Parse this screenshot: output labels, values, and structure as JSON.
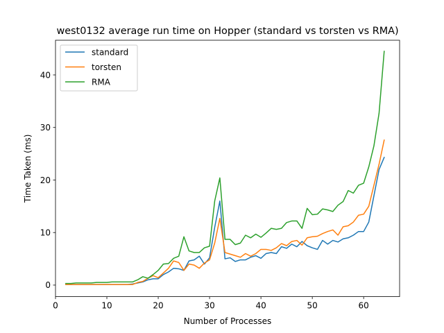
{
  "chart_data": {
    "type": "line",
    "title": "west0132 average run time on Hopper (standard vs torsten vs RMA)",
    "xlabel": "Number of Processes",
    "ylabel": "Time Taken (ms)",
    "xlim": [
      0,
      67
    ],
    "ylim": [
      -2.2,
      46.6
    ],
    "xticks": [
      0,
      10,
      20,
      30,
      40,
      50,
      60
    ],
    "yticks": [
      0,
      10,
      20,
      30,
      40
    ],
    "grid": false,
    "legend_position": "upper-left",
    "x": [
      2,
      3,
      4,
      5,
      6,
      7,
      8,
      9,
      10,
      11,
      12,
      13,
      14,
      15,
      16,
      17,
      18,
      19,
      20,
      21,
      22,
      23,
      24,
      25,
      26,
      27,
      28,
      29,
      30,
      31,
      32,
      33,
      34,
      35,
      36,
      37,
      38,
      39,
      40,
      41,
      42,
      43,
      44,
      45,
      46,
      47,
      48,
      49,
      50,
      51,
      52,
      53,
      54,
      55,
      56,
      57,
      58,
      59,
      60,
      61,
      62,
      63,
      64
    ],
    "series": [
      {
        "name": "standard",
        "color": "#1f77b4",
        "values": [
          0.1,
          0.1,
          0.1,
          0.1,
          0.1,
          0.1,
          0.1,
          0.1,
          0.1,
          0.1,
          0.1,
          0.1,
          0.1,
          0.2,
          0.4,
          0.6,
          1.0,
          1.2,
          1.2,
          2.0,
          2.5,
          3.2,
          3.1,
          2.8,
          4.6,
          4.8,
          5.5,
          4.0,
          5.2,
          11.0,
          16.0,
          5.0,
          5.2,
          4.5,
          4.8,
          4.8,
          5.3,
          5.6,
          5.1,
          6.0,
          6.2,
          6.0,
          7.3,
          7.0,
          7.8,
          7.3,
          8.3,
          7.5,
          7.1,
          6.8,
          8.5,
          7.8,
          8.5,
          8.2,
          8.8,
          9.0,
          9.5,
          10.2,
          10.2,
          12.0,
          17.0,
          22.0,
          24.3
        ]
      },
      {
        "name": "torsten",
        "color": "#ff7f0e",
        "values": [
          0.1,
          0.1,
          0.1,
          0.1,
          0.1,
          0.1,
          0.1,
          0.1,
          0.1,
          0.1,
          0.1,
          0.1,
          0.1,
          0.1,
          0.5,
          0.7,
          1.3,
          1.8,
          1.4,
          2.3,
          3.2,
          4.6,
          4.3,
          2.8,
          4.0,
          3.8,
          3.2,
          4.2,
          4.8,
          8.0,
          12.7,
          6.2,
          5.9,
          5.6,
          5.3,
          6.0,
          5.5,
          6.0,
          6.8,
          6.8,
          6.6,
          7.1,
          7.9,
          7.5,
          8.3,
          8.5,
          7.6,
          9.0,
          9.2,
          9.3,
          9.8,
          10.2,
          10.5,
          9.5,
          11.1,
          11.3,
          12.0,
          13.3,
          13.5,
          15.0,
          19.0,
          23.0,
          27.6
        ]
      },
      {
        "name": "RMA",
        "color": "#2ca02c",
        "values": [
          0.3,
          0.3,
          0.4,
          0.4,
          0.4,
          0.4,
          0.5,
          0.5,
          0.5,
          0.6,
          0.6,
          0.6,
          0.6,
          0.6,
          1.0,
          1.6,
          1.3,
          2.0,
          2.8,
          4.0,
          4.1,
          5.1,
          5.5,
          9.2,
          6.5,
          6.2,
          6.2,
          7.1,
          7.4,
          16.0,
          20.4,
          8.7,
          8.7,
          7.7,
          8.0,
          9.5,
          9.0,
          9.7,
          9.1,
          9.9,
          10.8,
          10.6,
          10.8,
          11.9,
          12.2,
          12.2,
          10.8,
          14.6,
          13.4,
          13.5,
          14.5,
          14.3,
          14.0,
          15.2,
          15.9,
          18.0,
          17.5,
          19.0,
          19.4,
          22.5,
          26.5,
          32.7,
          44.5
        ]
      }
    ]
  }
}
